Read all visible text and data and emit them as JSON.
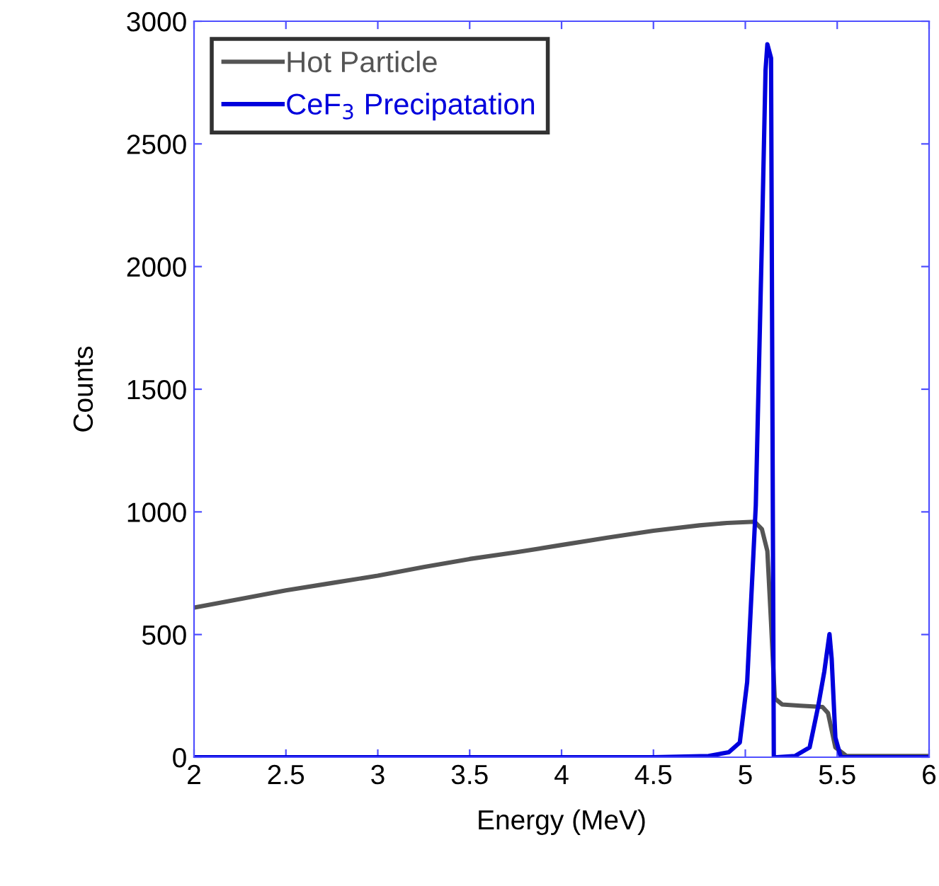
{
  "chart_data": {
    "type": "line",
    "xlabel": "Energy (MeV)",
    "ylabel": "Counts",
    "xlim": [
      2,
      6
    ],
    "ylim": [
      0,
      3000
    ],
    "xticks": [
      2,
      2.5,
      3,
      3.5,
      4,
      4.5,
      5,
      5.5,
      6
    ],
    "yticks": [
      0,
      500,
      1000,
      1500,
      2000,
      2500,
      3000
    ],
    "grid": false,
    "legend": "top left",
    "marker": "none",
    "line_style": "solid",
    "series": [
      {
        "name": "Hot Particle",
        "color": "#555555",
        "x": [
          2,
          2.25,
          2.5,
          2.75,
          3,
          3.25,
          3.5,
          3.75,
          4,
          4.25,
          4.5,
          4.75,
          4.9,
          5.05,
          5.09,
          5.12,
          5.14,
          5.16,
          5.2,
          5.3,
          5.42,
          5.45,
          5.49,
          5.55,
          5.7,
          6
        ],
        "values": [
          610,
          645,
          680,
          710,
          740,
          775,
          808,
          835,
          865,
          895,
          923,
          945,
          955,
          960,
          930,
          840,
          550,
          240,
          215,
          210,
          205,
          180,
          40,
          5,
          5,
          5
        ]
      },
      {
        "name": "CeF$_{3}$ Precipatation",
        "color": "#0000dd",
        "x": [
          2,
          4.5,
          4.8,
          4.91,
          4.97,
          5.01,
          5.057,
          5.09,
          5.11,
          5.12,
          5.14,
          5.155,
          5.17,
          5.27,
          5.35,
          5.395,
          5.43,
          5.458,
          5.47,
          5.49,
          5.52,
          5.6,
          6
        ],
        "values": [
          0,
          0,
          5,
          20,
          60,
          306,
          1027,
          2100,
          2800,
          2906,
          2850,
          0,
          0,
          5,
          40,
          202,
          350,
          502,
          400,
          80,
          0,
          0,
          0
        ]
      }
    ]
  }
}
